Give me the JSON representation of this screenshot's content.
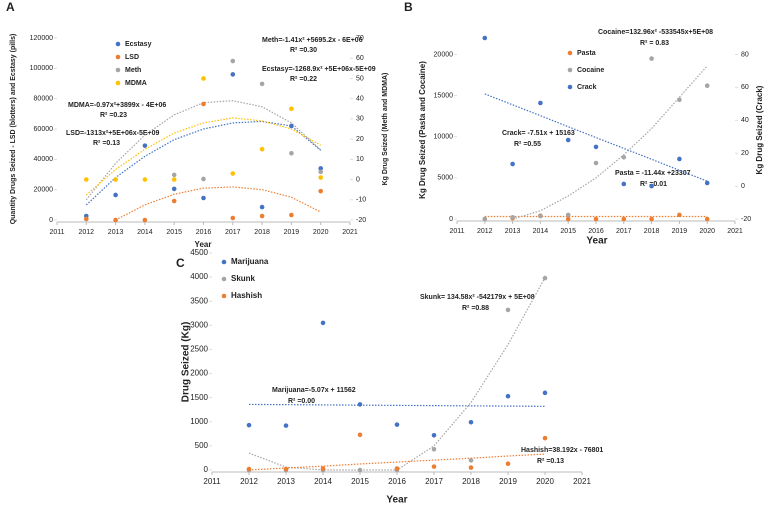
{
  "chart_data": [
    {
      "type": "scatter",
      "label": "A",
      "xlabel": "Year",
      "ylabel": "Quantity Drugs Seized - LSD (blotters) and Ecstasy (pills)",
      "y2label": "Kg Drug Seized (Meth and MDMA)",
      "x": [
        2012,
        2013,
        2014,
        2015,
        2016,
        2017,
        2018,
        2019,
        2020
      ],
      "xlim": [
        2011,
        2021
      ],
      "xticks": [
        2011,
        2012,
        2013,
        2014,
        2015,
        2016,
        2017,
        2018,
        2019,
        2020,
        2021
      ],
      "ylim": [
        0,
        120000
      ],
      "yticks": [
        0,
        20000,
        40000,
        60000,
        80000,
        100000,
        120000
      ],
      "y2lim": [
        -20,
        70
      ],
      "y2ticks": [
        -20,
        -10,
        0,
        10,
        20,
        30,
        40,
        50,
        60,
        70
      ],
      "series": [
        {
          "name": "Ecstasy",
          "color": "#4472c4",
          "values": [
            2600,
            16500,
            49000,
            20500,
            14500,
            96000,
            8500,
            62000,
            34000
          ]
        },
        {
          "name": "LSD",
          "color": "#ed7d31",
          "values": [
            700,
            0,
            0,
            12500,
            76500,
            1300,
            2600,
            3300,
            19000
          ]
        },
        {
          "name": "Meth",
          "color": "#a5a5a5",
          "axis": "y2",
          "values": [
            null,
            null,
            null,
            2.3,
            0.3,
            58.6,
            47.3,
            13,
            3.8
          ]
        },
        {
          "name": "MDMA",
          "color": "#ffc000",
          "axis": "y2",
          "values": [
            0,
            0,
            0,
            0,
            50,
            3,
            15,
            35,
            1
          ]
        }
      ],
      "trendlines": [
        {
          "color": "#4472c4",
          "values": [
            9900,
            28000,
            42000,
            53000,
            60000,
            64000,
            65000,
            62000,
            46000
          ]
        },
        {
          "color": "#ed7d31",
          "values": [
            null,
            0,
            10000,
            17000,
            21000,
            21800,
            20000,
            15000,
            5300
          ]
        },
        {
          "color": "#a5a5a5",
          "axis": "y2",
          "values": [
            -10,
            8,
            22,
            32,
            38,
            39,
            36,
            28,
            14.6
          ]
        },
        {
          "color": "#ffc000",
          "axis": "y2",
          "values": [
            -7.6,
            5,
            15,
            23,
            28,
            30.5,
            29,
            25,
            17
          ]
        }
      ],
      "annotations": [
        "Meth=-1.41x² +5695.2x - 6E+06",
        "R² =0.30",
        "Ecstasy=-1268.9x² +5E+06x-5E+09",
        "R² =0.22",
        "MDMA=-0.97x²+3899x - 4E+06",
        "R² =0.23",
        "LSD=-1313x²+5E+06x-5E+09",
        "R² =0.13"
      ]
    },
    {
      "type": "scatter",
      "label": "B",
      "xlabel": "Year",
      "ylabel": "Kg Drug Seized (Pasta and Cocaine)",
      "y2label": "Kg Drug Seized (Crack)",
      "x": [
        2012,
        2013,
        2014,
        2015,
        2016,
        2017,
        2018,
        2019,
        2020
      ],
      "xlim": [
        2011,
        2021
      ],
      "xticks": [
        2011,
        2012,
        2013,
        2014,
        2015,
        2016,
        2017,
        2018,
        2019,
        2020,
        2021
      ],
      "ylim": [
        0,
        22000
      ],
      "yticks": [
        0,
        5000,
        10000,
        15000,
        20000
      ],
      "y2lim": [
        -20,
        90
      ],
      "y2ticks": [
        -20,
        0,
        20,
        40,
        60,
        80
      ],
      "series": [
        {
          "name": "Pasta",
          "color": "#ed7d31",
          "values": [
            0,
            100,
            400,
            0,
            0,
            0,
            0,
            500,
            0
          ]
        },
        {
          "name": "Cocaine",
          "color": "#a5a5a5",
          "values": [
            0,
            200,
            350,
            500,
            6800,
            7500,
            19500,
            14500,
            16200
          ]
        },
        {
          "name": "Crack",
          "color": "#4472c4",
          "axis": "y2",
          "values": [
            90,
            13.4,
            50.5,
            28,
            23.8,
            1.3,
            0,
            16.5,
            1.9
          ]
        }
      ],
      "trendlines": [
        {
          "color": "#ed7d31",
          "values": [
            300,
            300,
            300,
            300,
            300,
            300,
            300,
            300,
            300
          ]
        },
        {
          "color": "#a5a5a5",
          "values": [
            null,
            0,
            1000,
            2800,
            5000,
            7800,
            11000,
            14800,
            18600
          ]
        },
        {
          "color": "#4472c4",
          "axis": "y2",
          "values": [
            56,
            49.4,
            42.8,
            36.1,
            29.5,
            22.9,
            16.3,
            9.6,
            3
          ]
        }
      ],
      "annotations": [
        "Cocaine=132.96x² -533545x+5E+08",
        "R² = 0.83",
        "Crack= -7.51x + 15163",
        "R² =0.55",
        "Pasta = -11.44x +23307",
        "R² =0.01"
      ]
    },
    {
      "type": "scatter",
      "label": "C",
      "xlabel": "Year",
      "ylabel": "Drug Seized (Kg)",
      "x": [
        2012,
        2013,
        2014,
        2015,
        2016,
        2017,
        2018,
        2019,
        2020
      ],
      "xlim": [
        2011,
        2021
      ],
      "xticks": [
        2011,
        2012,
        2013,
        2014,
        2015,
        2016,
        2017,
        2018,
        2019,
        2020,
        2021
      ],
      "ylim": [
        0,
        4500
      ],
      "yticks": [
        0,
        500,
        1000,
        1500,
        2000,
        2500,
        3000,
        3500,
        4000,
        4500
      ],
      "series": [
        {
          "name": "Marijuana",
          "color": "#4472c4",
          "values": [
            930,
            920,
            3050,
            1360,
            940,
            720,
            990,
            1530,
            1600
          ]
        },
        {
          "name": "Skunk",
          "color": "#a5a5a5",
          "values": [
            0,
            0,
            0,
            0,
            0,
            430,
            200,
            3320,
            3980
          ]
        },
        {
          "name": "Hashish",
          "color": "#ed7d31",
          "values": [
            20,
            20,
            30,
            730,
            30,
            70,
            50,
            130,
            660
          ]
        }
      ],
      "trendlines": [
        {
          "color": "#4472c4",
          "values": [
            1360,
            1355,
            1350,
            1345,
            1340,
            1335,
            1330,
            1325,
            1320
          ]
        },
        {
          "color": "#a5a5a5",
          "values": [
            350,
            60,
            0,
            0,
            0,
            500,
            1400,
            2600,
            3990
          ]
        },
        {
          "color": "#ed7d31",
          "values": [
            0,
            40,
            80,
            125,
            165,
            205,
            245,
            290,
            330
          ]
        }
      ],
      "annotations": [
        "Skunk= 134.58x² -542179x + 5E+08",
        "R² =0.88",
        "Marijuana=-5.07x + 11562",
        "R² =0.00",
        "Hashish=38.192x - 76801",
        "R² =0.13"
      ]
    }
  ]
}
